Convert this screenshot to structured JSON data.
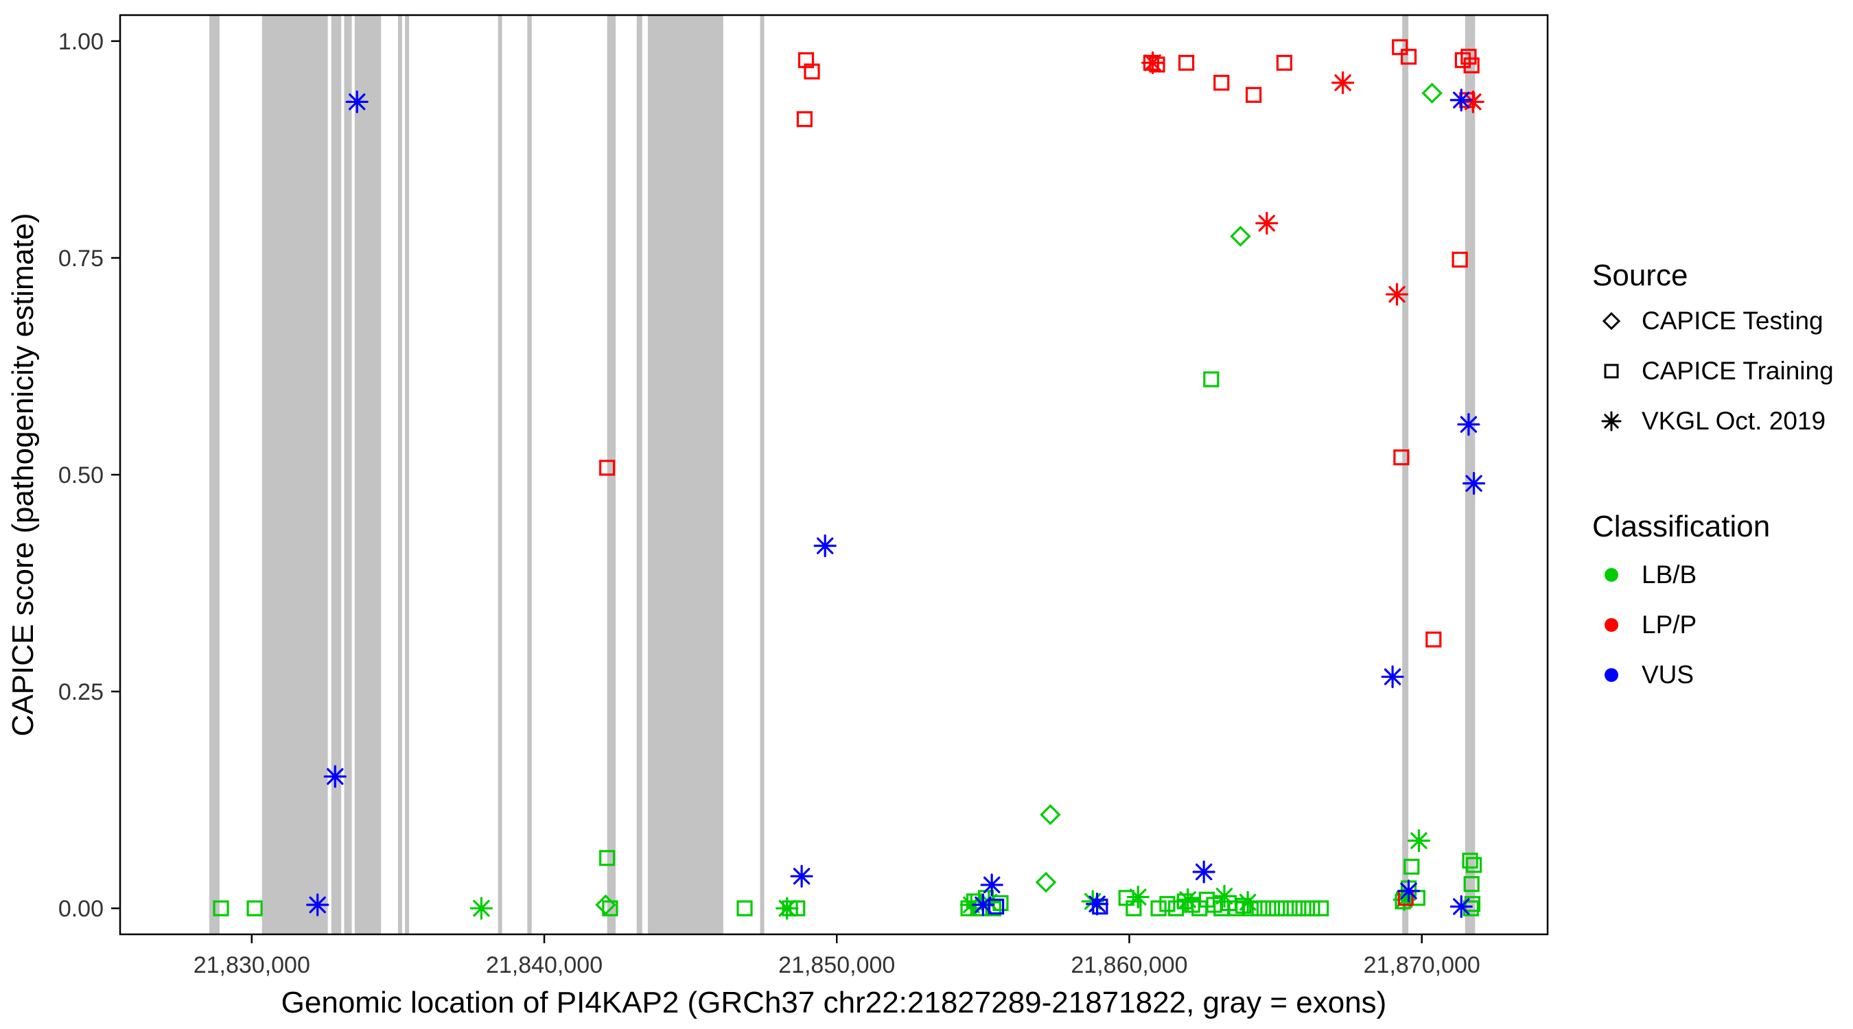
{
  "figure": {
    "background": "#FFFFFF",
    "panel_border_color": "#000000",
    "exon_color": "#C3C3C3",
    "axis_text_color": "#333333",
    "title_text_color": "#000000",
    "tick_color": "#000000"
  },
  "chart_data": {
    "type": "scatter",
    "title": "",
    "xlabel": "Genomic location of PI4KAP2 (GRCh37 chr22:21827289-21871822, gray = exons)",
    "ylabel": "CAPICE score (pathogenicity estimate)",
    "xlim": [
      21825500,
      21874300
    ],
    "ylim": [
      -0.03,
      1.03
    ],
    "grid": false,
    "x_ticks": [
      {
        "value": 21830000,
        "label": "21,830,000"
      },
      {
        "value": 21840000,
        "label": "21,840,000"
      },
      {
        "value": 21850000,
        "label": "21,850,000"
      },
      {
        "value": 21860000,
        "label": "21,860,000"
      },
      {
        "value": 21870000,
        "label": "21,870,000"
      }
    ],
    "y_ticks": [
      {
        "value": 0.0,
        "label": "0.00"
      },
      {
        "value": 0.25,
        "label": "0.25"
      },
      {
        "value": 0.5,
        "label": "0.50"
      },
      {
        "value": 0.75,
        "label": "0.75"
      },
      {
        "value": 1.0,
        "label": "1.00"
      }
    ],
    "exons": [
      [
        21828550,
        21828900
      ],
      [
        21830350,
        21832600
      ],
      [
        21832720,
        21833060
      ],
      [
        21833160,
        21833420
      ],
      [
        21833520,
        21834420
      ],
      [
        21835000,
        21835140
      ],
      [
        21835240,
        21835380
      ],
      [
        21838420,
        21838560
      ],
      [
        21839420,
        21839570
      ],
      [
        21842150,
        21842440
      ],
      [
        21843160,
        21843350
      ],
      [
        21843540,
        21846120
      ],
      [
        21847380,
        21847520
      ],
      [
        21869330,
        21869540
      ],
      [
        21871480,
        21871822
      ]
    ],
    "series": [
      {
        "id": "lbb-testing",
        "classification": "LB/B",
        "source": "CAPICE Testing",
        "shape": "diamond",
        "color": "#00CC00",
        "points": [
          [
            21842100,
            0.004
          ],
          [
            21857300,
            0.108
          ],
          [
            21857150,
            0.03
          ],
          [
            21863800,
            0.775
          ],
          [
            21870350,
            0.94
          ]
        ]
      },
      {
        "id": "lbb-training",
        "classification": "LB/B",
        "source": "CAPICE Training",
        "shape": "square",
        "color": "#00CC00",
        "points": [
          [
            21828950,
            0.0
          ],
          [
            21830100,
            0.0
          ],
          [
            21842150,
            0.058
          ],
          [
            21842250,
            0.0
          ],
          [
            21846850,
            0.0
          ],
          [
            21848400,
            0.0
          ],
          [
            21848650,
            0.0
          ],
          [
            21854500,
            0.0
          ],
          [
            21854700,
            0.008
          ],
          [
            21854900,
            0.0
          ],
          [
            21855100,
            0.012
          ],
          [
            21855350,
            0.0
          ],
          [
            21855600,
            0.006
          ],
          [
            21859900,
            0.012
          ],
          [
            21860150,
            0.0
          ],
          [
            21861000,
            0.0
          ],
          [
            21861300,
            0.005
          ],
          [
            21861600,
            0.0
          ],
          [
            21861900,
            0.008
          ],
          [
            21862150,
            0.004
          ],
          [
            21862400,
            0.0
          ],
          [
            21862650,
            0.01
          ],
          [
            21862900,
            0.004
          ],
          [
            21863150,
            0.0
          ],
          [
            21863400,
            0.006
          ],
          [
            21863650,
            0.0
          ],
          [
            21863900,
            0.003
          ],
          [
            21864150,
            0.0
          ],
          [
            21864450,
            0.0
          ],
          [
            21864750,
            0.0
          ],
          [
            21865050,
            0.0
          ],
          [
            21865350,
            0.0
          ],
          [
            21865650,
            0.0
          ],
          [
            21865950,
            0.0
          ],
          [
            21866250,
            0.0
          ],
          [
            21866550,
            0.0
          ],
          [
            21862800,
            0.61
          ],
          [
            21869350,
            0.008
          ],
          [
            21869550,
            0.023
          ],
          [
            21869650,
            0.048
          ],
          [
            21869850,
            0.012
          ],
          [
            21871650,
            0.055
          ],
          [
            21871780,
            0.05
          ],
          [
            21871700,
            0.028
          ],
          [
            21871730,
            0.005
          ],
          [
            21871680,
            0.0
          ]
        ]
      },
      {
        "id": "lbb-vkgl",
        "classification": "LB/B",
        "source": "VKGL Oct. 2019",
        "shape": "asterisk",
        "color": "#00CC00",
        "points": [
          [
            21837850,
            0.0
          ],
          [
            21848300,
            0.0
          ],
          [
            21854600,
            0.004
          ],
          [
            21855200,
            0.007
          ],
          [
            21858750,
            0.008
          ],
          [
            21860300,
            0.013
          ],
          [
            21862000,
            0.01
          ],
          [
            21863250,
            0.014
          ],
          [
            21864050,
            0.007
          ],
          [
            21869400,
            0.01
          ],
          [
            21869900,
            0.078
          ]
        ]
      },
      {
        "id": "lpp-training",
        "classification": "LP/P",
        "source": "CAPICE Training",
        "shape": "square",
        "color": "#FF0000",
        "points": [
          [
            21842150,
            0.508
          ],
          [
            21848900,
            0.91
          ],
          [
            21848950,
            0.978
          ],
          [
            21849150,
            0.965
          ],
          [
            21860750,
            0.975
          ],
          [
            21860950,
            0.973
          ],
          [
            21861950,
            0.975
          ],
          [
            21863150,
            0.952
          ],
          [
            21864250,
            0.938
          ],
          [
            21865300,
            0.975
          ],
          [
            21869250,
            0.993
          ],
          [
            21869550,
            0.982
          ],
          [
            21869300,
            0.52
          ],
          [
            21870400,
            0.31
          ],
          [
            21869450,
            0.012
          ],
          [
            21871300,
            0.748
          ],
          [
            21871400,
            0.978
          ],
          [
            21871600,
            0.982
          ],
          [
            21871700,
            0.972
          ],
          [
            21871550,
            0.932
          ]
        ]
      },
      {
        "id": "lpp-vkgl",
        "classification": "LP/P",
        "source": "VKGL Oct. 2019",
        "shape": "asterisk",
        "color": "#FF0000",
        "points": [
          [
            21860800,
            0.975
          ],
          [
            21864700,
            0.79
          ],
          [
            21867300,
            0.952
          ],
          [
            21869150,
            0.708
          ],
          [
            21871750,
            0.93
          ]
        ]
      },
      {
        "id": "vus-training",
        "classification": "VUS",
        "source": "CAPICE Training",
        "shape": "square",
        "color": "#0000FF",
        "points": [
          [
            21859000,
            0.002
          ],
          [
            21855450,
            0.002
          ]
        ]
      },
      {
        "id": "vus-vkgl",
        "classification": "VUS",
        "source": "VKGL Oct. 2019",
        "shape": "asterisk",
        "color": "#0000FF",
        "points": [
          [
            21832250,
            0.004
          ],
          [
            21832850,
            0.152
          ],
          [
            21833600,
            0.93
          ],
          [
            21848800,
            0.037
          ],
          [
            21849600,
            0.418
          ],
          [
            21855300,
            0.027
          ],
          [
            21855000,
            0.004
          ],
          [
            21858900,
            0.005
          ],
          [
            21862550,
            0.042
          ],
          [
            21869000,
            0.267
          ],
          [
            21869550,
            0.02
          ],
          [
            21871350,
            0.932
          ],
          [
            21871350,
            0.002
          ],
          [
            21871600,
            0.558
          ],
          [
            21871780,
            0.49
          ]
        ]
      }
    ],
    "legend": {
      "source_title": "Source",
      "source_items": [
        {
          "shape": "diamond",
          "label": "CAPICE Testing"
        },
        {
          "shape": "square",
          "label": "CAPICE Training"
        },
        {
          "shape": "asterisk",
          "label": "VKGL Oct. 2019"
        }
      ],
      "classification_title": "Classification",
      "classification_items": [
        {
          "color": "#00CC00",
          "label": "LB/B"
        },
        {
          "color": "#FF0000",
          "label": "LP/P"
        },
        {
          "color": "#0000FF",
          "label": "VUS"
        }
      ]
    }
  }
}
